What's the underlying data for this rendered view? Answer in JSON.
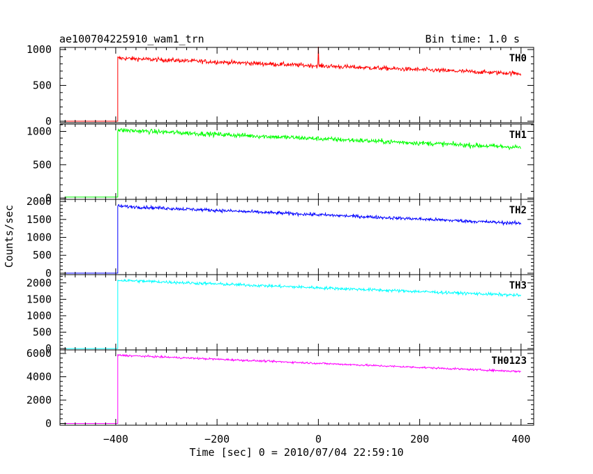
{
  "header": {
    "title": "ae100704225910_wam1_trn",
    "bin_time": "Bin time: 1.0 s"
  },
  "chart_data": {
    "type": "line",
    "xlabel": "Time [sec] 0 = 2010/07/04 22:59:10",
    "ylabel": "Counts/sec",
    "xlim": [
      -510,
      425
    ],
    "x_ticks": [
      -400,
      -200,
      0,
      200,
      400
    ],
    "x_tick_labels": [
      "−400",
      "−200",
      "0",
      "200",
      "400"
    ],
    "step_time": -396,
    "x_start": -500,
    "x_end": 400,
    "panels": [
      {
        "name": "TH0",
        "color": "#ff0000",
        "ylim": [
          -20,
          1030
        ],
        "yticks": [
          0,
          500,
          1000
        ],
        "ytick_labels": [
          "0",
          "500",
          "1000"
        ],
        "pre_level": 0,
        "start_level": 880,
        "end_level": 665,
        "noise": 30,
        "spike": {
          "x": 0,
          "y": 1040
        }
      },
      {
        "name": "TH1",
        "color": "#00ff00",
        "ylim": [
          -20,
          1110
        ],
        "yticks": [
          0,
          500,
          1000
        ],
        "ytick_labels": [
          "0",
          "500",
          "1000"
        ],
        "pre_level": 15,
        "start_level": 1020,
        "end_level": 760,
        "noise": 35
      },
      {
        "name": "TH2",
        "color": "#0000ff",
        "ylim": [
          -40,
          2060
        ],
        "yticks": [
          0,
          500,
          1000,
          1500,
          2000
        ],
        "ytick_labels": [
          "0",
          "500",
          "1000",
          "1500",
          "2000"
        ],
        "pre_level": 0,
        "start_level": 1870,
        "end_level": 1390,
        "noise": 45
      },
      {
        "name": "TH3",
        "color": "#00ffff",
        "ylim": [
          -40,
          2250
        ],
        "yticks": [
          0,
          500,
          1000,
          1500,
          2000
        ],
        "ytick_labels": [
          "0",
          "500",
          "1000",
          "1500",
          "2000"
        ],
        "pre_level": 0,
        "start_level": 2080,
        "end_level": 1620,
        "noise": 45
      },
      {
        "name": "TH0123",
        "color": "#ff00ff",
        "ylim": [
          -150,
          6300
        ],
        "yticks": [
          0,
          2000,
          4000,
          6000
        ],
        "ytick_labels": [
          "0",
          "2000",
          "4000",
          "6000"
        ],
        "pre_level": 0,
        "start_level": 5850,
        "end_level": 4450,
        "noise": 80
      }
    ]
  }
}
